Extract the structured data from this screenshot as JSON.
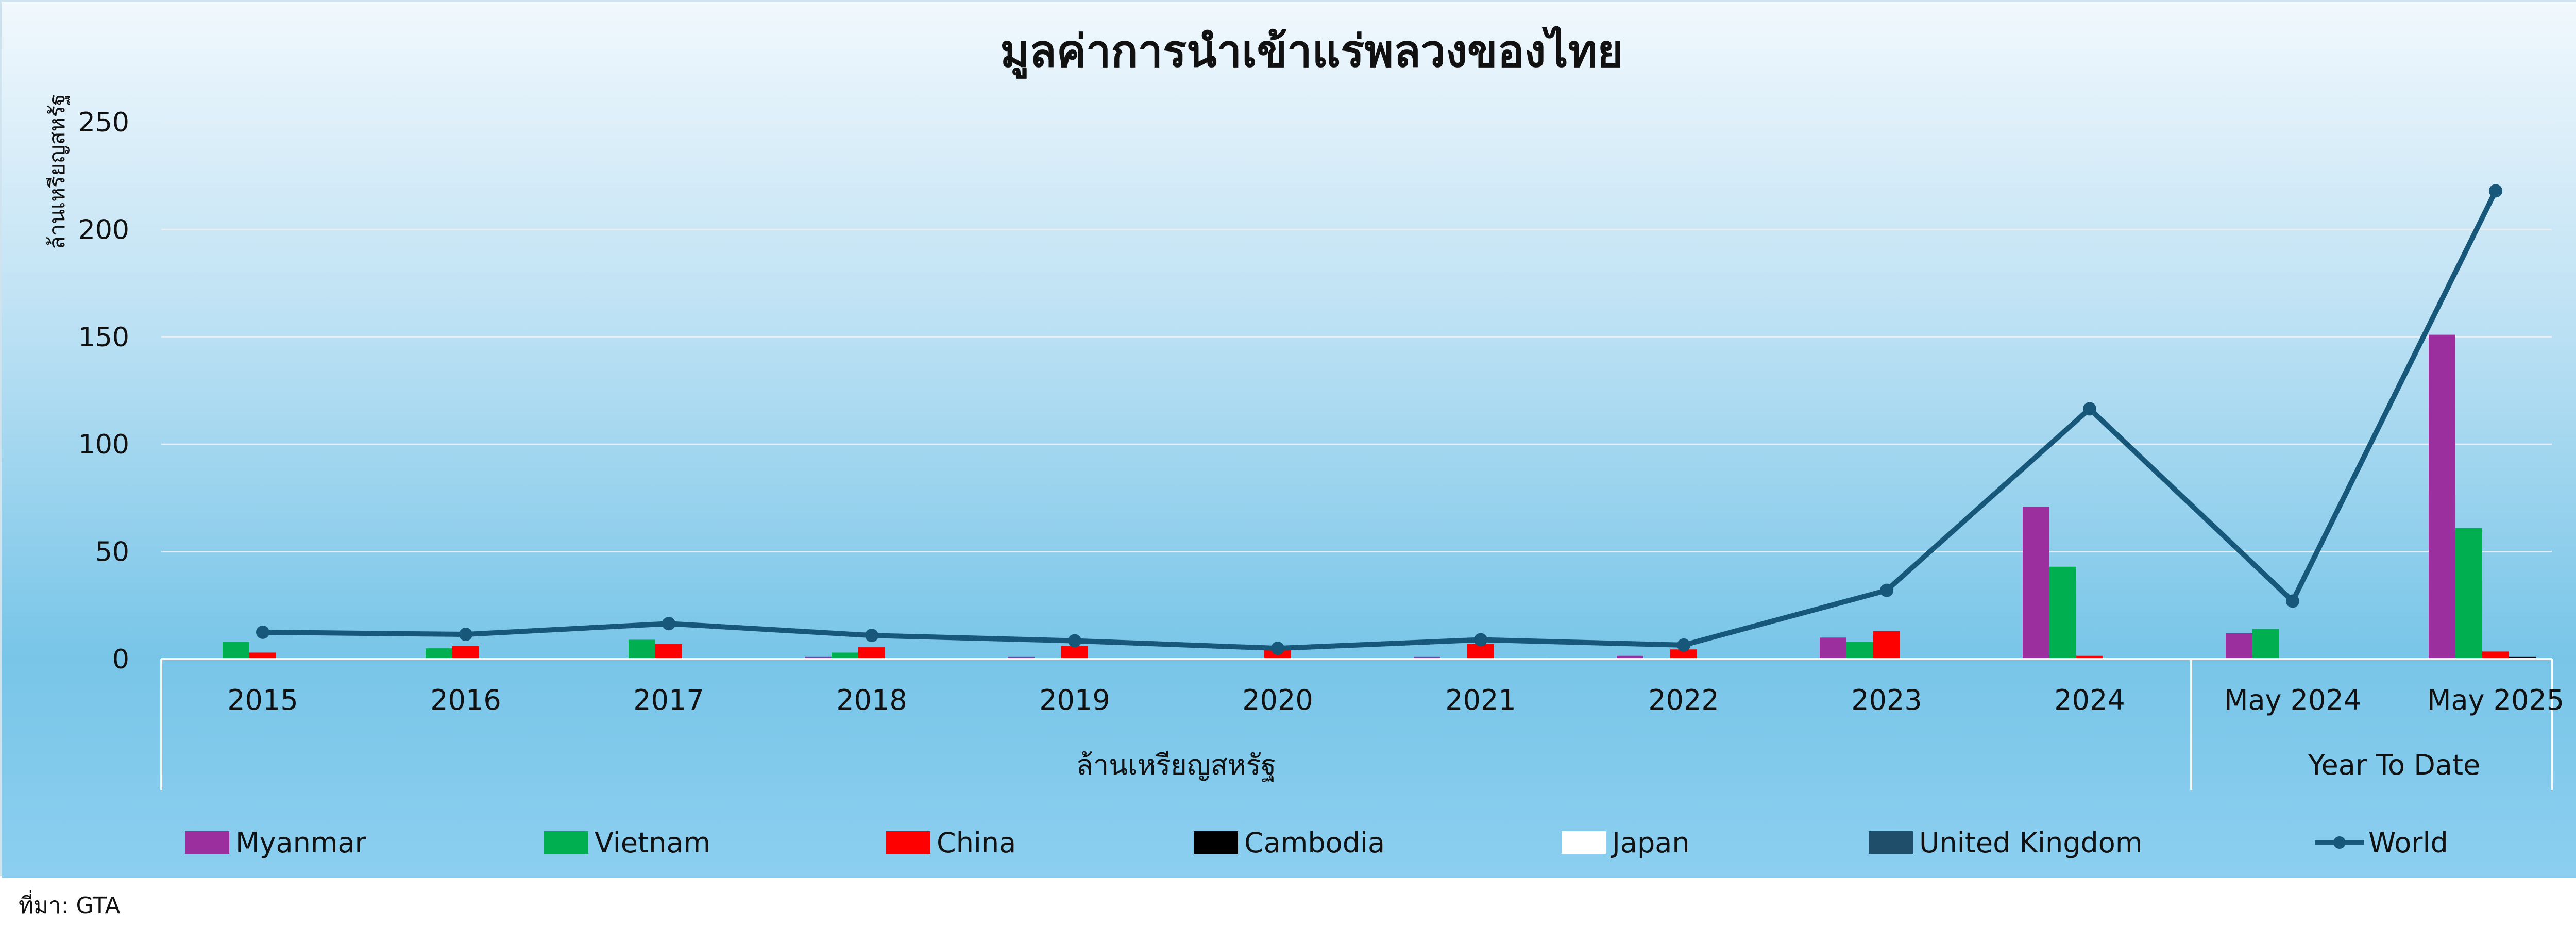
{
  "source_note": "ที่มา: GTA",
  "chart_data": {
    "type": "bar",
    "title": "มูลค่าการนำเข้าแร่พลวงของไทย",
    "ylabel": "ล้านเหรียญสหรัฐ",
    "ylim": [
      0,
      250
    ],
    "yticks": [
      0,
      50,
      100,
      150,
      200,
      250
    ],
    "grid": true,
    "legend_position": "bottom",
    "categories": [
      "2015",
      "2016",
      "2017",
      "2018",
      "2019",
      "2020",
      "2021",
      "2022",
      "2023",
      "2024",
      "May 2024",
      "May 2025"
    ],
    "groups": [
      {
        "label": "ล้านเหรียญสหรัฐ",
        "start": 0,
        "end": 9
      },
      {
        "label": "Year To Date",
        "start": 10,
        "end": 11
      }
    ],
    "series": [
      {
        "name": "Myanmar",
        "type": "bar",
        "color": "#9b2f9e",
        "values": [
          0,
          0,
          0,
          1,
          1,
          0,
          1,
          1.5,
          10,
          71,
          12,
          151
        ]
      },
      {
        "name": "Vietnam",
        "type": "bar",
        "color": "#00b050",
        "values": [
          8,
          5,
          9,
          3,
          0.5,
          0,
          0,
          0,
          8,
          43,
          14,
          61
        ]
      },
      {
        "name": "China",
        "type": "bar",
        "color": "#ff0000",
        "values": [
          3,
          6,
          7,
          5.5,
          6,
          5,
          7,
          4.5,
          13,
          1.5,
          0,
          3.5
        ]
      },
      {
        "name": "Cambodia",
        "type": "bar",
        "color": "#000000",
        "values": [
          0,
          0,
          0,
          0,
          0,
          0,
          0,
          0,
          0,
          0,
          0,
          1
        ]
      },
      {
        "name": "Japan",
        "type": "bar",
        "color": "#ffffff",
        "values": [
          0,
          0,
          0,
          0,
          0,
          0,
          0.5,
          0,
          0,
          0,
          0,
          0
        ]
      },
      {
        "name": "United Kingdom",
        "type": "bar",
        "color": "#1f4e6b",
        "values": [
          0,
          0,
          0,
          0,
          0,
          0,
          0,
          0,
          0,
          0,
          0,
          0
        ]
      },
      {
        "name": "World",
        "type": "line",
        "color": "#17587a",
        "values": [
          12.5,
          11.5,
          16.5,
          11,
          8.5,
          5,
          9,
          6.5,
          32,
          116.5,
          27,
          218
        ]
      }
    ]
  }
}
